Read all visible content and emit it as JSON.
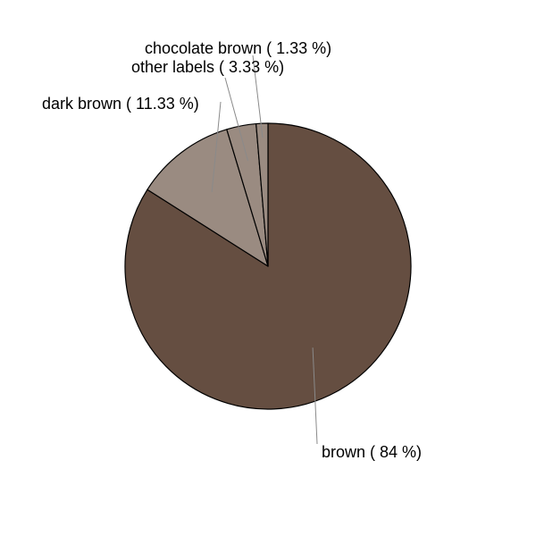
{
  "chart_data": {
    "type": "pie",
    "title": "",
    "start_angle_deg": 90,
    "direction": "clockwise",
    "slices": [
      {
        "category": "brown",
        "value": 84,
        "label": "brown ( 84 %)",
        "color": "#654e41"
      },
      {
        "category": "dark brown",
        "value": 11.33,
        "label": "dark brown ( 11.33 %)",
        "color": "#9a8b81"
      },
      {
        "category": "other labels",
        "value": 3.33,
        "label": "other labels ( 3.33 %)",
        "color": "#9a8b81"
      },
      {
        "category": "chocolate brown",
        "value": 1.33,
        "label": "chocolate brown ( 1.33 %)",
        "color": "#9a8b81"
      }
    ]
  }
}
